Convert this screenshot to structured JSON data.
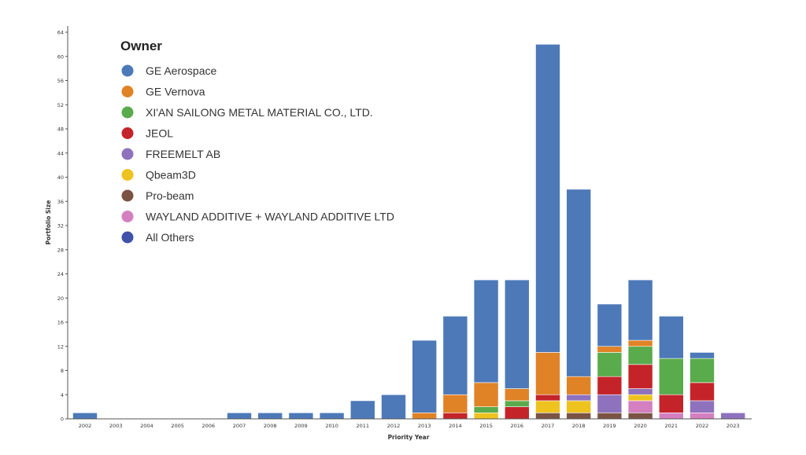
{
  "chart_data": {
    "type": "bar",
    "stacked": true,
    "xlabel": "Priority Year",
    "ylabel": "Portfolio Size",
    "ylim": [
      0,
      64
    ],
    "yticks": [
      0,
      4,
      8,
      12,
      16,
      20,
      24,
      28,
      32,
      36,
      40,
      44,
      48,
      52,
      56,
      60,
      64
    ],
    "grid": false,
    "legend_title": "Owner",
    "legend_position": "top-left",
    "categories": [
      "2002",
      "2003",
      "2004",
      "2005",
      "2006",
      "2007",
      "2008",
      "2009",
      "2010",
      "2011",
      "2012",
      "2013",
      "2014",
      "2015",
      "2016",
      "2017",
      "2018",
      "2019",
      "2020",
      "2021",
      "2022",
      "2023"
    ],
    "series": [
      {
        "name": "Pro-beam",
        "color": "#7b5344",
        "values": [
          0,
          0,
          0,
          0,
          0,
          0,
          0,
          0,
          0,
          0,
          0,
          0,
          0,
          0,
          0,
          1,
          1,
          1,
          1,
          0,
          0,
          0
        ]
      },
      {
        "name": "WAYLAND ADDITIVE + WAYLAND ADDITIVE LTD",
        "color": "#d47fc0",
        "values": [
          0,
          0,
          0,
          0,
          0,
          0,
          0,
          0,
          0,
          0,
          0,
          0,
          0,
          0,
          0,
          0,
          0,
          0,
          2,
          1,
          1,
          0
        ]
      },
      {
        "name": "Qbeam3D",
        "color": "#eec21f",
        "values": [
          0,
          0,
          0,
          0,
          0,
          0,
          0,
          0,
          0,
          0,
          0,
          0,
          0,
          1,
          0,
          2,
          2,
          0,
          1,
          0,
          0,
          0
        ]
      },
      {
        "name": "FREEMELT AB",
        "color": "#8e72bd",
        "values": [
          0,
          0,
          0,
          0,
          0,
          0,
          0,
          0,
          0,
          0,
          0,
          0,
          0,
          0,
          0,
          0,
          1,
          3,
          1,
          0,
          2,
          1
        ]
      },
      {
        "name": "JEOL",
        "color": "#c42429",
        "values": [
          0,
          0,
          0,
          0,
          0,
          0,
          0,
          0,
          0,
          0,
          0,
          0,
          1,
          0,
          2,
          1,
          0,
          3,
          4,
          3,
          3,
          0
        ]
      },
      {
        "name": "XI'AN SAILONG METAL MATERIAL CO., LTD.",
        "color": "#5aab4b",
        "values": [
          0,
          0,
          0,
          0,
          0,
          0,
          0,
          0,
          0,
          0,
          0,
          0,
          0,
          1,
          1,
          0,
          0,
          4,
          3,
          6,
          4,
          0
        ]
      },
      {
        "name": "GE Vernova",
        "color": "#e08226",
        "values": [
          0,
          0,
          0,
          0,
          0,
          0,
          0,
          0,
          0,
          0,
          0,
          1,
          3,
          4,
          2,
          7,
          3,
          1,
          1,
          0,
          0,
          0
        ]
      },
      {
        "name": "GE Aerospace",
        "color": "#4d79b8",
        "values": [
          1,
          0,
          0,
          0,
          0,
          1,
          1,
          1,
          1,
          3,
          4,
          12,
          13,
          17,
          18,
          51,
          31,
          7,
          10,
          7,
          1,
          0
        ]
      },
      {
        "name": "All Others",
        "color": "#3f51a8",
        "values": [
          0,
          0,
          0,
          0,
          0,
          0,
          0,
          0,
          0,
          0,
          0,
          0,
          0,
          0,
          0,
          0,
          0,
          0,
          0,
          0,
          0,
          0
        ]
      }
    ],
    "legend_order": [
      "GE Aerospace",
      "GE Vernova",
      "XI'AN SAILONG METAL MATERIAL CO., LTD.",
      "JEOL",
      "FREEMELT AB",
      "Qbeam3D",
      "Pro-beam",
      "WAYLAND ADDITIVE + WAYLAND ADDITIVE LTD",
      "All Others"
    ]
  }
}
